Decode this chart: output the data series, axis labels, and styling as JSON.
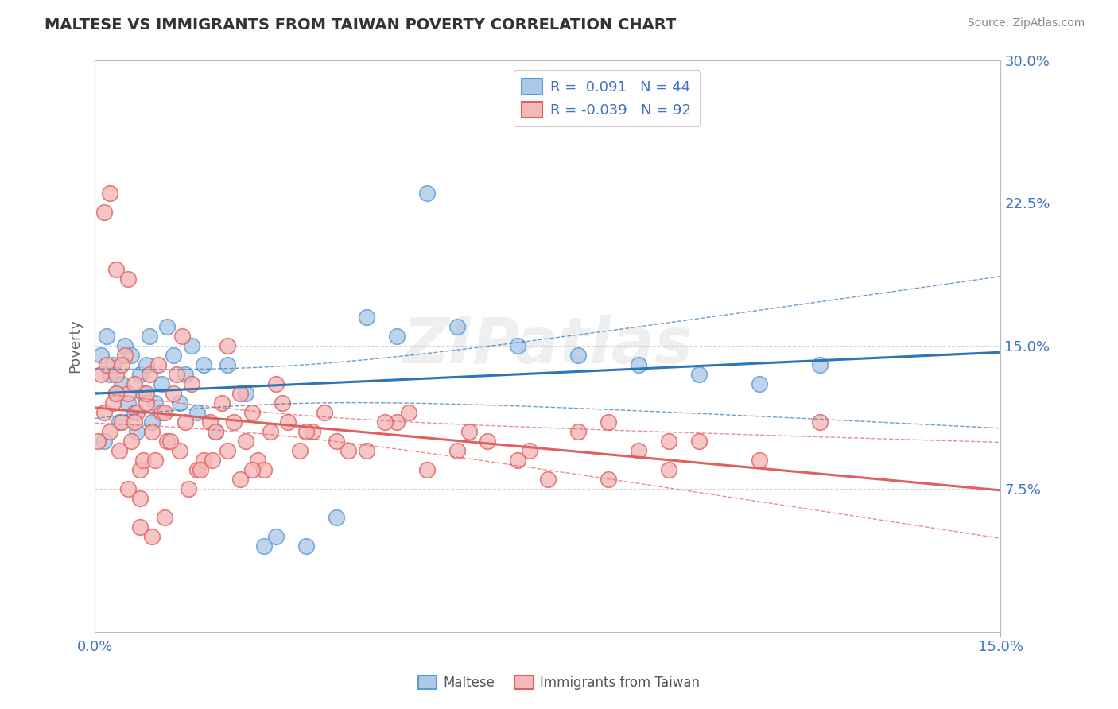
{
  "title": "MALTESE VS IMMIGRANTS FROM TAIWAN POVERTY CORRELATION CHART",
  "source": "Source: ZipAtlas.com",
  "ylabel": "Poverty",
  "xlim": [
    0.0,
    15.0
  ],
  "ylim": [
    0.0,
    30.0
  ],
  "xtick_vals": [
    0.0,
    15.0
  ],
  "xtick_labels": [
    "0.0%",
    "15.0%"
  ],
  "ytick_vals": [
    7.5,
    15.0,
    22.5,
    30.0
  ],
  "ytick_labels": [
    "7.5%",
    "15.0%",
    "22.5%",
    "30.0%"
  ],
  "watermark": "ZIPatlas",
  "series": [
    {
      "name": "Maltese",
      "face_color": "#aec8e8",
      "edge_color": "#5b9bd5",
      "trend_color": "#2e75b6",
      "R": 0.091,
      "N": 44,
      "x": [
        0.1,
        0.15,
        0.2,
        0.25,
        0.3,
        0.35,
        0.4,
        0.45,
        0.5,
        0.55,
        0.6,
        0.65,
        0.7,
        0.75,
        0.8,
        0.85,
        0.9,
        0.95,
        1.0,
        1.1,
        1.2,
        1.3,
        1.4,
        1.5,
        1.6,
        1.7,
        1.8,
        2.0,
        2.2,
        2.5,
        2.8,
        3.0,
        3.5,
        4.0,
        4.5,
        5.0,
        5.5,
        6.0,
        7.0,
        8.0,
        9.0,
        10.0,
        11.0,
        12.0
      ],
      "y": [
        14.5,
        10.0,
        15.5,
        13.5,
        14.0,
        12.5,
        11.0,
        13.0,
        15.0,
        12.0,
        14.5,
        11.5,
        10.5,
        13.5,
        12.5,
        14.0,
        15.5,
        11.0,
        12.0,
        13.0,
        16.0,
        14.5,
        12.0,
        13.5,
        15.0,
        11.5,
        14.0,
        10.5,
        14.0,
        12.5,
        4.5,
        5.0,
        4.5,
        6.0,
        16.5,
        15.5,
        23.0,
        16.0,
        15.0,
        14.5,
        14.0,
        13.5,
        13.0,
        14.0
      ]
    },
    {
      "name": "Immigrants from Taiwan",
      "face_color": "#f4b8b8",
      "edge_color": "#e06060",
      "trend_color": "#e06060",
      "R": -0.039,
      "N": 92,
      "x": [
        0.05,
        0.1,
        0.15,
        0.2,
        0.25,
        0.3,
        0.35,
        0.4,
        0.45,
        0.5,
        0.55,
        0.6,
        0.65,
        0.7,
        0.75,
        0.8,
        0.85,
        0.9,
        0.95,
        1.0,
        1.1,
        1.2,
        1.3,
        1.4,
        1.5,
        1.6,
        1.7,
        1.8,
        1.9,
        2.0,
        2.1,
        2.2,
        2.3,
        2.4,
        2.5,
        2.6,
        2.7,
        2.8,
        2.9,
        3.0,
        3.2,
        3.4,
        3.6,
        3.8,
        4.0,
        4.5,
        5.0,
        5.5,
        6.0,
        6.5,
        7.0,
        7.5,
        8.0,
        8.5,
        9.0,
        9.5,
        10.0,
        11.0,
        12.0,
        1.05,
        1.15,
        1.25,
        0.35,
        0.55,
        0.75,
        1.35,
        1.55,
        1.75,
        1.95,
        0.45,
        0.65,
        0.85,
        0.25,
        0.15,
        0.35,
        0.55,
        0.75,
        0.95,
        1.15,
        1.45,
        2.2,
        2.4,
        2.6,
        3.1,
        3.5,
        4.2,
        4.8,
        5.2,
        6.2,
        7.2,
        8.5,
        9.5
      ],
      "y": [
        10.0,
        13.5,
        11.5,
        14.0,
        10.5,
        12.0,
        13.5,
        9.5,
        11.0,
        14.5,
        12.5,
        10.0,
        13.0,
        11.5,
        8.5,
        9.0,
        12.0,
        13.5,
        10.5,
        9.0,
        11.5,
        10.0,
        12.5,
        9.5,
        11.0,
        13.0,
        8.5,
        9.0,
        11.0,
        10.5,
        12.0,
        9.5,
        11.0,
        8.0,
        10.0,
        11.5,
        9.0,
        8.5,
        10.5,
        13.0,
        11.0,
        9.5,
        10.5,
        11.5,
        10.0,
        9.5,
        11.0,
        8.5,
        9.5,
        10.0,
        9.0,
        8.0,
        10.5,
        11.0,
        9.5,
        8.5,
        10.0,
        9.0,
        11.0,
        14.0,
        11.5,
        10.0,
        12.5,
        7.5,
        7.0,
        13.5,
        7.5,
        8.5,
        9.0,
        14.0,
        11.0,
        12.5,
        23.0,
        22.0,
        19.0,
        18.5,
        5.5,
        5.0,
        6.0,
        15.5,
        15.0,
        12.5,
        8.5,
        12.0,
        10.5,
        9.5,
        11.0,
        11.5,
        10.5,
        9.5,
        8.0,
        10.0
      ]
    }
  ],
  "background_color": "#ffffff",
  "grid_color": "#cccccc",
  "tick_label_color": "#4472c4",
  "title_color": "#333333",
  "axis_label_color": "#666666",
  "legend_label_color": "#4472c4",
  "source_color": "#888888",
  "bottom_legend": [
    {
      "name": "Maltese",
      "face": "#aec8e8",
      "edge": "#5b9bd5"
    },
    {
      "name": "Immigrants from Taiwan",
      "face": "#f4b8b8",
      "edge": "#e06060"
    }
  ]
}
